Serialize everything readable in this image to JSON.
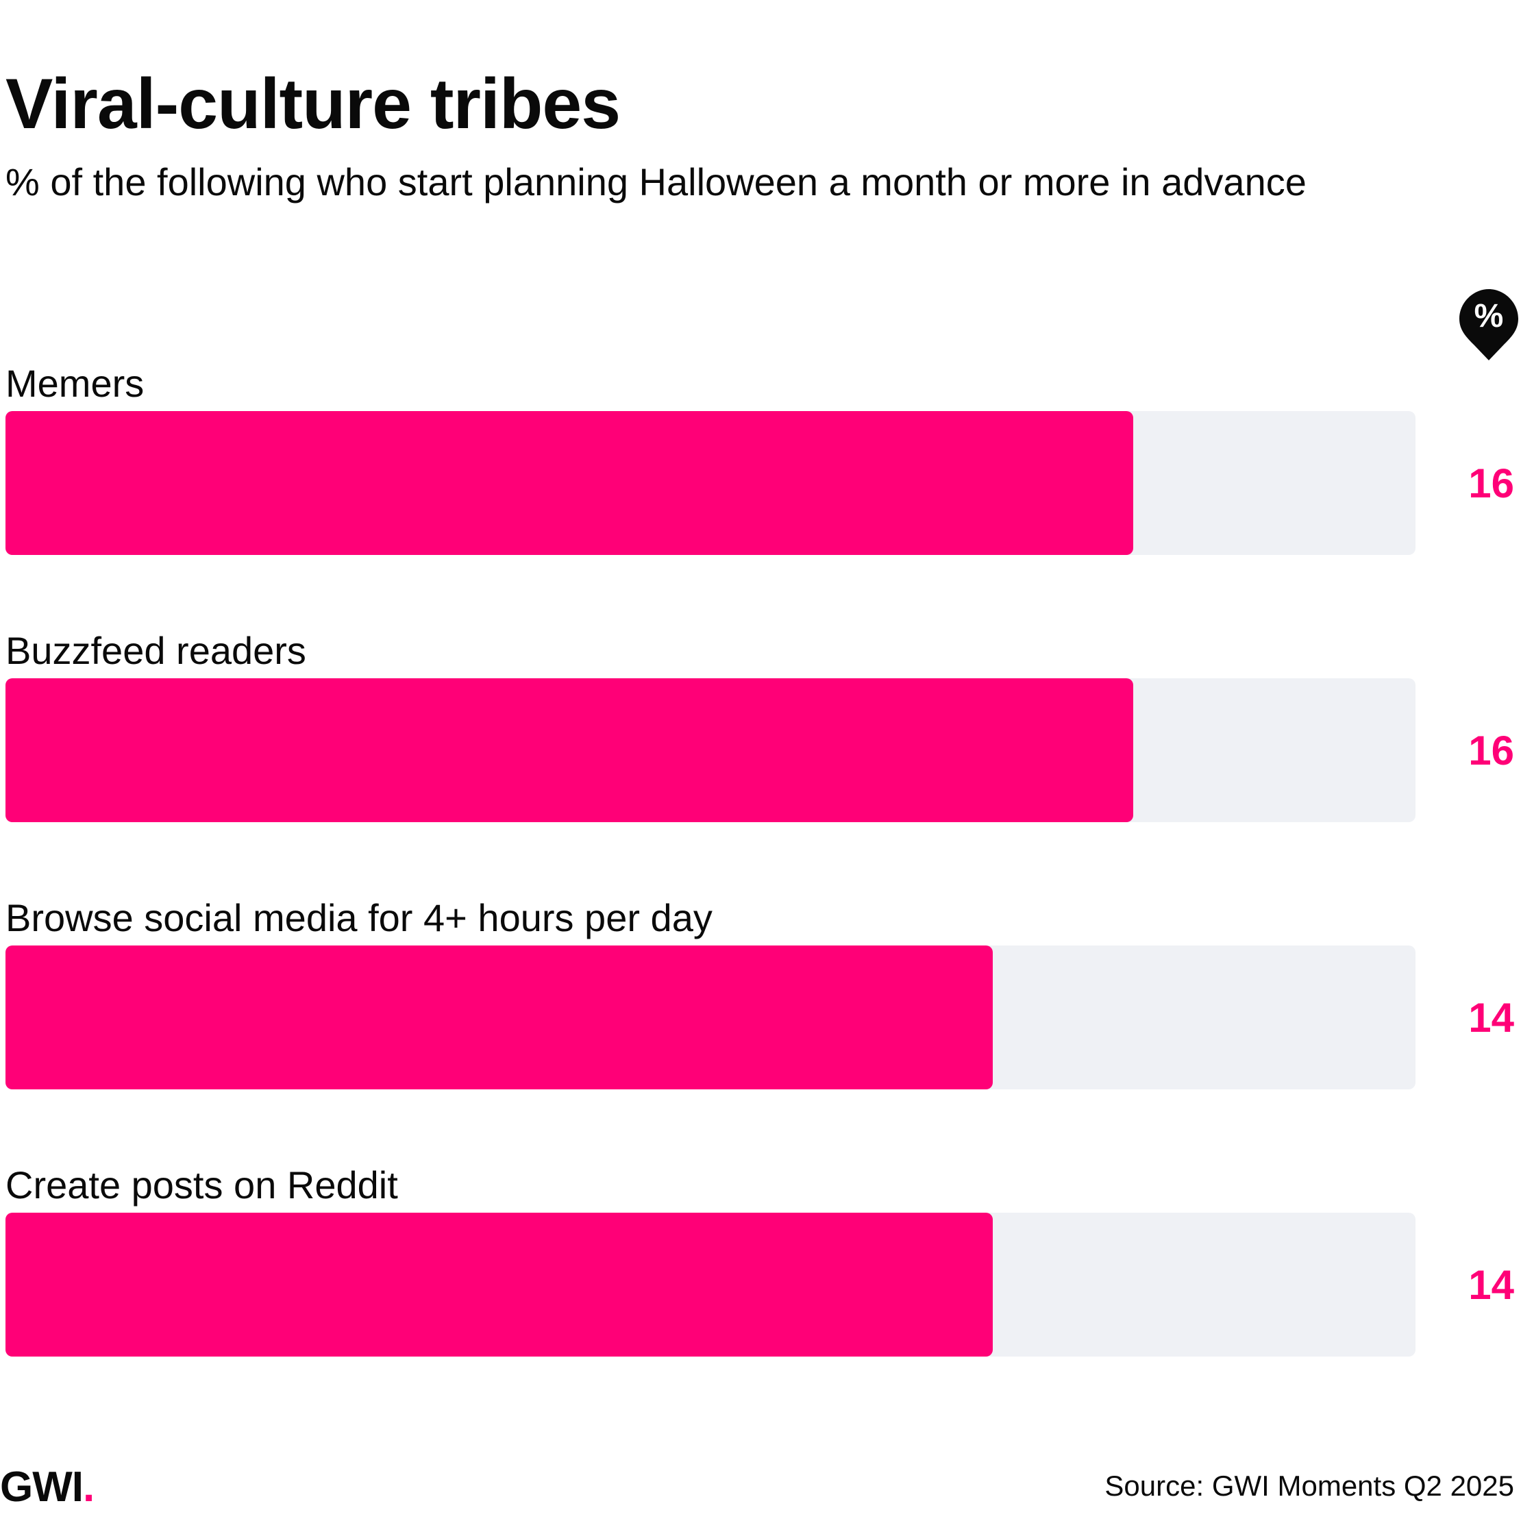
{
  "title": "Viral-culture tribes",
  "subtitle": "% of the following who start planning Halloween a month or more in advance",
  "unit_badge": "%",
  "colors": {
    "bar": "#ff0077",
    "track": "#eff1f5",
    "value": "#ff0077",
    "text": "#0a0a0a"
  },
  "logo": {
    "text": "GWI",
    "dot": "."
  },
  "source": "Source: GWI Moments Q2 2025",
  "chart_data": {
    "type": "bar",
    "orientation": "horizontal",
    "title": "Viral-culture tribes",
    "subtitle": "% of the following who start planning Halloween a month or more in advance",
    "categories": [
      "Memers",
      "Buzzfeed readers",
      "Browse social media for 4+ hours per day",
      "Create posts on Reddit"
    ],
    "values": [
      16,
      16,
      14,
      14
    ],
    "xlim": [
      0,
      20
    ],
    "grid": false,
    "legend": "none"
  }
}
